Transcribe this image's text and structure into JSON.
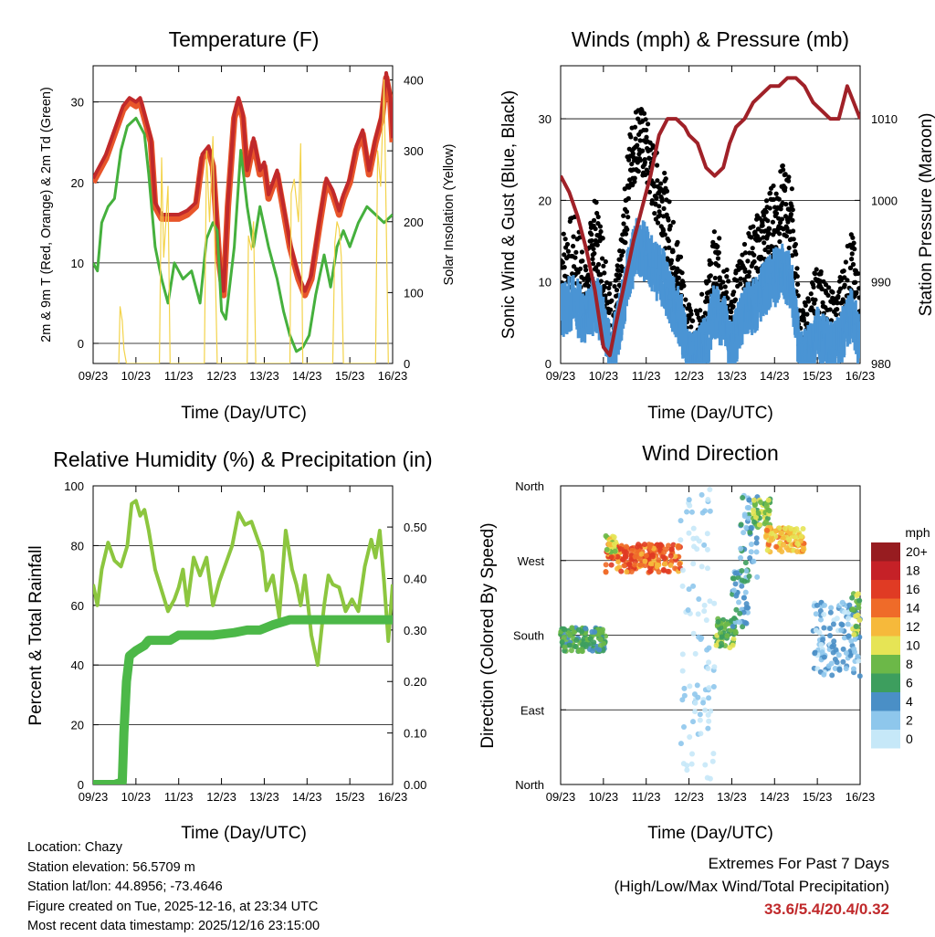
{
  "panels": {
    "temperature": {
      "title": "Temperature (F)",
      "ylabel_left": "2m & 9m T (Red, Orange) & 2m Td (Green)",
      "ylabel_right": "Solar Insolation (Yellow)",
      "xlabel": "Time (Day/UTC)"
    },
    "winds": {
      "title": "Winds (mph) & Pressure (mb)",
      "ylabel_left": "Sonic Wind & Gust (Blue, Black)",
      "ylabel_right": "Station Pressure (Maroon)",
      "xlabel": "Time (Day/UTC)"
    },
    "humidity": {
      "title": "Relative Humidity (%) & Precipitation (in)",
      "ylabel_left": "Percent & Total Rainfall",
      "xlabel": "Time (Day/UTC)"
    },
    "direction": {
      "title": "Wind Direction",
      "ylabel_left": "Direction (Colored By Speed)",
      "xlabel": "Time (Day/UTC)",
      "legend_title": "mph"
    }
  },
  "chart_data": [
    {
      "id": "temperature",
      "type": "line",
      "x_ticks": [
        "09/23",
        "10/23",
        "11/23",
        "12/23",
        "13/23",
        "14/23",
        "15/23",
        "16/23"
      ],
      "xlim": [
        0,
        7
      ],
      "ylim": [
        -2.5,
        34.5
      ],
      "yticks": [
        0,
        10,
        20,
        30
      ],
      "y2lim": [
        0,
        420
      ],
      "y2ticks": [
        0,
        100,
        200,
        300,
        400
      ],
      "series": [
        {
          "name": "2m T",
          "color": "#e8552a",
          "x": [
            0,
            0.1,
            0.3,
            0.5,
            0.7,
            0.85,
            1.0,
            1.1,
            1.25,
            1.35,
            1.45,
            1.6,
            1.8,
            2.0,
            2.2,
            2.4,
            2.55,
            2.7,
            2.8,
            2.95,
            3.05,
            3.15,
            3.3,
            3.4,
            3.5,
            3.6,
            3.75,
            3.9,
            4.0,
            4.1,
            4.3,
            4.4,
            4.6,
            4.8,
            4.95,
            5.1,
            5.3,
            5.45,
            5.6,
            5.75,
            5.85,
            6.0,
            6.15,
            6.3,
            6.45,
            6.6,
            6.75,
            6.85,
            6.95,
            7.0
          ],
          "y": [
            20,
            21,
            23,
            26,
            29,
            30,
            29.5,
            30,
            27,
            25,
            17,
            15.5,
            15.5,
            15.5,
            16,
            17,
            23,
            24,
            22,
            10,
            6,
            17,
            28,
            30,
            28,
            21,
            25,
            21,
            22,
            18,
            21,
            18,
            12,
            8,
            6,
            8,
            15,
            20,
            18.5,
            16,
            18,
            20,
            24,
            26,
            21,
            25,
            28,
            33,
            30,
            25
          ]
        },
        {
          "name": "9m T",
          "color": "#c0292b",
          "x": [
            0,
            0.1,
            0.3,
            0.5,
            0.7,
            0.85,
            1.0,
            1.1,
            1.25,
            1.35,
            1.45,
            1.6,
            1.8,
            2.0,
            2.2,
            2.4,
            2.55,
            2.7,
            2.8,
            2.95,
            3.05,
            3.15,
            3.3,
            3.4,
            3.5,
            3.6,
            3.75,
            3.9,
            4.0,
            4.1,
            4.3,
            4.4,
            4.6,
            4.8,
            4.95,
            5.1,
            5.3,
            5.45,
            5.6,
            5.75,
            5.85,
            6.0,
            6.15,
            6.3,
            6.45,
            6.6,
            6.75,
            6.85,
            6.95,
            7.0
          ],
          "y": [
            20.5,
            21.5,
            23.5,
            26.5,
            29.5,
            30.5,
            30,
            30.5,
            27.5,
            25.5,
            17.5,
            16,
            16,
            16,
            16.5,
            17.5,
            23.5,
            24.5,
            22.5,
            10.5,
            6.5,
            17.5,
            28.5,
            30.5,
            28.5,
            21.5,
            25.5,
            21.5,
            22.5,
            18.5,
            21.5,
            18.5,
            12.5,
            8.5,
            6.5,
            8.5,
            15.5,
            20.5,
            19,
            16.5,
            18.5,
            20.5,
            24.5,
            26.5,
            21.5,
            25.5,
            28.5,
            33.6,
            30.5,
            25.5
          ]
        },
        {
          "name": "2m Td",
          "color": "#45b03d",
          "x": [
            0,
            0.1,
            0.2,
            0.35,
            0.5,
            0.65,
            0.8,
            1.0,
            1.2,
            1.3,
            1.45,
            1.6,
            1.75,
            1.9,
            2.1,
            2.3,
            2.5,
            2.65,
            2.8,
            2.9,
            3.0,
            3.1,
            3.3,
            3.45,
            3.6,
            3.75,
            3.9,
            4.1,
            4.3,
            4.45,
            4.6,
            4.75,
            4.9,
            5.05,
            5.2,
            5.4,
            5.55,
            5.7,
            5.85,
            6.0,
            6.2,
            6.4,
            6.6,
            6.8,
            7.0
          ],
          "y": [
            10,
            9,
            15,
            17,
            18,
            24,
            27,
            28,
            26,
            21,
            12,
            8,
            5,
            10,
            8,
            9,
            5,
            13,
            15,
            14,
            4,
            3,
            12,
            24,
            17,
            12,
            17,
            12,
            8,
            4,
            1,
            -1,
            -0.5,
            1,
            6,
            11,
            7,
            12,
            14,
            12,
            15,
            17,
            16,
            15,
            16
          ]
        },
        {
          "name": "Solar Insolation",
          "color": "#f3d34a",
          "axis": "y2",
          "x": [
            0.6,
            0.63,
            0.68,
            0.72,
            0.78,
            1.55,
            1.6,
            1.65,
            1.7,
            1.75,
            1.8,
            2.6,
            2.65,
            2.72,
            2.8,
            2.85,
            2.9,
            3.6,
            3.63,
            3.7,
            3.75,
            3.8,
            4.6,
            4.63,
            4.7,
            4.8,
            4.85,
            4.9,
            5.6,
            5.65,
            5.7,
            5.75,
            5.8,
            5.85,
            6.6,
            6.65,
            6.72,
            6.8,
            6.85,
            6.9
          ],
          "y": [
            0,
            80,
            60,
            20,
            0,
            0,
            290,
            150,
            200,
            250,
            0,
            0,
            300,
            200,
            320,
            150,
            0,
            0,
            180,
            160,
            200,
            0,
            0,
            240,
            260,
            200,
            310,
            0,
            0,
            170,
            200,
            190,
            150,
            0,
            0,
            300,
            250,
            400,
            200,
            0
          ]
        }
      ]
    },
    {
      "id": "winds",
      "type": "line",
      "x_ticks": [
        "09/23",
        "10/23",
        "11/23",
        "12/23",
        "13/23",
        "14/23",
        "15/23",
        "16/23"
      ],
      "xlim": [
        0,
        7
      ],
      "ylim": [
        0,
        36.5
      ],
      "yticks": [
        0,
        10,
        20,
        30
      ],
      "y2lim": [
        980,
        1016.5
      ],
      "y2ticks": [
        980,
        990,
        1000,
        1010
      ],
      "series": [
        {
          "name": "Gust",
          "color": "#000000",
          "x": [
            0,
            0.3,
            0.6,
            0.8,
            1.0,
            1.2,
            1.4,
            1.6,
            1.8,
            2.0,
            2.2,
            2.4,
            2.6,
            2.8,
            3.0,
            3.2,
            3.4,
            3.6,
            3.8,
            4.0,
            4.2,
            4.4,
            4.6,
            4.8,
            5.0,
            5.2,
            5.4,
            5.6,
            5.8,
            6.0,
            6.2,
            6.4,
            6.6,
            6.8,
            7.0
          ],
          "y": [
            12,
            14,
            10,
            16,
            12,
            4,
            10,
            24,
            28,
            26,
            22,
            20,
            14,
            10,
            3,
            2,
            6,
            12,
            10,
            4,
            10,
            12,
            14,
            16,
            18,
            20,
            18,
            2,
            4,
            8,
            6,
            4,
            8,
            12,
            6
          ]
        },
        {
          "name": "Sonic Wind",
          "color": "#4a94d4",
          "x": [
            0,
            0.3,
            0.6,
            0.8,
            1.0,
            1.2,
            1.4,
            1.6,
            1.8,
            2.0,
            2.2,
            2.4,
            2.6,
            2.8,
            3.0,
            3.2,
            3.4,
            3.6,
            3.8,
            4.0,
            4.2,
            4.4,
            4.6,
            4.8,
            5.0,
            5.2,
            5.4,
            5.6,
            5.8,
            6.0,
            6.2,
            6.4,
            6.6,
            6.8,
            7.0
          ],
          "y": [
            7,
            8,
            6,
            8,
            6,
            2,
            6,
            12,
            15,
            14,
            12,
            11,
            8,
            6,
            1,
            1,
            3,
            7,
            6,
            2,
            6,
            7,
            8,
            10,
            11,
            12,
            10,
            1,
            2,
            4,
            3,
            2,
            4,
            7,
            3
          ]
        },
        {
          "name": "Station Pressure",
          "color": "#a02128",
          "axis": "y2",
          "x": [
            0,
            0.2,
            0.4,
            0.6,
            0.8,
            1.0,
            1.15,
            1.3,
            1.5,
            1.7,
            1.9,
            2.1,
            2.3,
            2.5,
            2.7,
            2.9,
            3.0,
            3.2,
            3.4,
            3.6,
            3.8,
            3.95,
            4.1,
            4.3,
            4.5,
            4.7,
            4.9,
            5.1,
            5.3,
            5.5,
            5.7,
            5.9,
            6.1,
            6.3,
            6.5,
            6.6,
            6.7,
            6.85,
            7.0
          ],
          "y": [
            1003,
            1001,
            998,
            994,
            989,
            982,
            981,
            985,
            990,
            995,
            999,
            1003,
            1008,
            1010,
            1010,
            1009,
            1008,
            1007,
            1004,
            1003,
            1004,
            1007,
            1009,
            1010,
            1012,
            1013,
            1014,
            1014,
            1015,
            1015,
            1014,
            1012,
            1011,
            1010,
            1010,
            1012,
            1014,
            1012,
            1010
          ]
        }
      ]
    },
    {
      "id": "humidity",
      "type": "line",
      "x_ticks": [
        "09/23",
        "10/23",
        "11/23",
        "12/23",
        "13/23",
        "14/23",
        "15/23",
        "16/23"
      ],
      "xlim": [
        0,
        7
      ],
      "ylim": [
        0,
        100
      ],
      "yticks": [
        0,
        20,
        40,
        60,
        80,
        100
      ],
      "y2lim": [
        0,
        0.58
      ],
      "y2ticks": [
        "0.00",
        "0.10",
        "0.20",
        "0.30",
        "0.40",
        "0.50"
      ],
      "series": [
        {
          "name": "Relative Humidity",
          "color": "#8cc63f",
          "x": [
            0,
            0.1,
            0.2,
            0.35,
            0.5,
            0.65,
            0.8,
            0.9,
            1.0,
            1.1,
            1.2,
            1.3,
            1.45,
            1.6,
            1.75,
            1.9,
            2.0,
            2.1,
            2.2,
            2.35,
            2.5,
            2.65,
            2.8,
            2.95,
            3.1,
            3.25,
            3.4,
            3.55,
            3.7,
            3.85,
            3.95,
            4.05,
            4.2,
            4.35,
            4.5,
            4.65,
            4.75,
            4.85,
            4.95,
            5.1,
            5.25,
            5.4,
            5.5,
            5.6,
            5.75,
            5.9,
            6.05,
            6.2,
            6.35,
            6.5,
            6.6,
            6.7,
            6.8,
            6.9,
            7.0
          ],
          "y": [
            67,
            60,
            72,
            81,
            75,
            73,
            80,
            94,
            95,
            90,
            92,
            85,
            72,
            65,
            58,
            62,
            66,
            72,
            60,
            76,
            70,
            76,
            60,
            68,
            74,
            80,
            91,
            87,
            88,
            82,
            78,
            65,
            70,
            56,
            85,
            72,
            67,
            60,
            70,
            50,
            40,
            60,
            70,
            67,
            66,
            58,
            62,
            58,
            73,
            82,
            76,
            85,
            68,
            48,
            67
          ]
        },
        {
          "name": "Total Precipitation",
          "color": "#4cb848",
          "axis": "y2",
          "x": [
            0,
            0.5,
            0.68,
            0.72,
            0.78,
            0.85,
            1.0,
            1.2,
            1.3,
            1.5,
            1.8,
            2.0,
            2.3,
            2.8,
            3.3,
            3.6,
            3.9,
            4.2,
            4.6,
            5.0,
            5.4,
            6.0,
            6.5,
            7.0
          ],
          "y": [
            0,
            0,
            0.005,
            0.1,
            0.2,
            0.25,
            0.26,
            0.27,
            0.28,
            0.28,
            0.28,
            0.29,
            0.29,
            0.29,
            0.295,
            0.3,
            0.3,
            0.31,
            0.32,
            0.32,
            0.32,
            0.32,
            0.32,
            0.32
          ]
        }
      ]
    },
    {
      "id": "direction",
      "type": "scatter",
      "x_ticks": [
        "09/23",
        "10/23",
        "11/23",
        "12/23",
        "13/23",
        "14/23",
        "15/23",
        "16/23"
      ],
      "xlim": [
        0,
        7
      ],
      "ylim": [
        0,
        360
      ],
      "y_ticks": [
        {
          "value": 0,
          "label": "North"
        },
        {
          "value": 90,
          "label": "East"
        },
        {
          "value": 180,
          "label": "South"
        },
        {
          "value": 270,
          "label": "West"
        },
        {
          "value": 360,
          "label": "North"
        }
      ],
      "clusters": [
        {
          "x": [
            0,
            1.05
          ],
          "y": [
            160,
            190
          ],
          "speed": 7
        },
        {
          "x": [
            1.05,
            2.8
          ],
          "y": [
            255,
            290
          ],
          "speed": 15
        },
        {
          "x": [
            1.05,
            1.3
          ],
          "y": [
            280,
            300
          ],
          "speed": 11
        },
        {
          "x": [
            2.8,
            3.6
          ],
          "y": [
            0,
            360
          ],
          "speed": 1
        },
        {
          "x": [
            3.6,
            4.1
          ],
          "y": [
            165,
            200
          ],
          "speed": 8
        },
        {
          "x": [
            4.0,
            4.4
          ],
          "y": [
            190,
            260
          ],
          "speed": 5
        },
        {
          "x": [
            4.2,
            4.6
          ],
          "y": [
            250,
            350
          ],
          "speed": 4
        },
        {
          "x": [
            4.5,
            4.9
          ],
          "y": [
            310,
            345
          ],
          "speed": 9
        },
        {
          "x": [
            4.8,
            5.7
          ],
          "y": [
            280,
            310
          ],
          "speed": 12
        },
        {
          "x": [
            5.9,
            7.0
          ],
          "y": [
            130,
            220
          ],
          "speed": 3
        },
        {
          "x": [
            6.8,
            7.0
          ],
          "y": [
            180,
            230
          ],
          "speed": 9
        }
      ],
      "colorbar": {
        "labels": [
          "0",
          "2",
          "4",
          "6",
          "8",
          "10",
          "12",
          "14",
          "16",
          "18",
          "20+"
        ],
        "colors": [
          "#c6e8f8",
          "#8ec7ec",
          "#4a8fc6",
          "#3d9e5e",
          "#6cb848",
          "#e6e455",
          "#f6b93b",
          "#ef6b29",
          "#e03b24",
          "#c52127",
          "#971c20"
        ]
      }
    }
  ],
  "info": {
    "location": "Location: Chazy",
    "elevation": "Station elevation: 56.5709 m",
    "latlon": "Station lat/lon: 44.8956; -73.4646",
    "created": "Figure created on Tue, 2025-12-16, at 23:34 UTC",
    "recent": "Most recent data timestamp: 2025/12/16 23:15:00"
  },
  "extremes": {
    "title": "Extremes For Past 7 Days",
    "subtitle": "(High/Low/Max Wind/Total Precipitation)",
    "values": "33.6/5.4/20.4/0.32"
  }
}
